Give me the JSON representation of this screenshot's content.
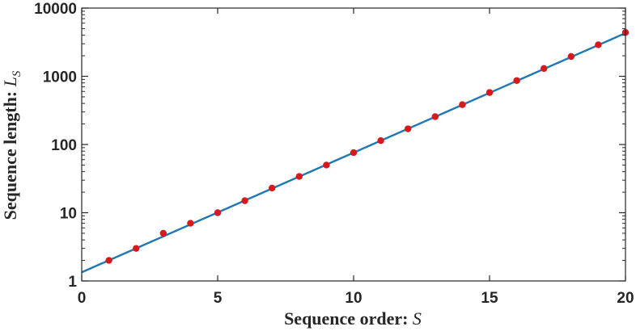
{
  "chart_data": {
    "type": "scatter",
    "title": "",
    "xlabel": "Sequence order: ",
    "xlabel_symbol": "S",
    "ylabel": "Sequence length: ",
    "ylabel_symbol": "L",
    "ylabel_subscript": "S",
    "x_scale": "linear",
    "y_scale": "log",
    "xlim": [
      0,
      20
    ],
    "ylim": [
      1,
      10000
    ],
    "x_ticks": [
      0,
      5,
      10,
      15,
      20
    ],
    "x_tick_labels": [
      "0",
      "5",
      "10",
      "15",
      "20"
    ],
    "y_ticks": [
      1,
      10,
      100,
      1000,
      10000
    ],
    "y_tick_labels": [
      "1",
      "10",
      "100",
      "1000",
      "10000"
    ],
    "grid": false,
    "legend": "none",
    "series": [
      {
        "kind": "points",
        "color": "#d7191c",
        "x": [
          1,
          2,
          3,
          4,
          5,
          6,
          7,
          8,
          9,
          10,
          11,
          12,
          13,
          14,
          15,
          16,
          17,
          18,
          19,
          20
        ],
        "y": [
          2,
          3,
          5,
          7,
          10,
          15,
          23,
          34,
          50,
          76,
          114,
          170,
          256,
          384,
          578,
          866,
          1300,
          1950,
          2900,
          4390
        ]
      },
      {
        "kind": "fit-line",
        "color": "#1f77b4",
        "x": [
          0,
          20
        ],
        "y": [
          1.34,
          4300
        ]
      }
    ]
  }
}
